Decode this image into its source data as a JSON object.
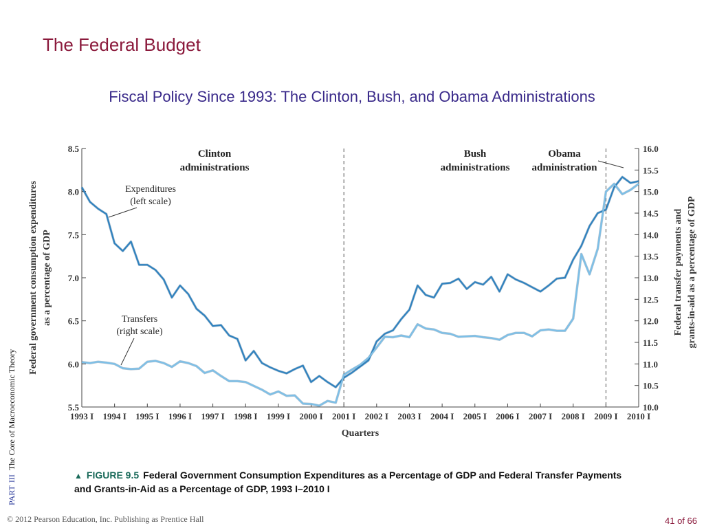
{
  "slide": {
    "title": "The Federal Budget",
    "subtitle": "Fiscal Policy Since 1993: The Clinton, Bush, and Obama Administrations",
    "side_part": "PART",
    "side_roman": "III",
    "side_text": "The Core of Macroeconomic Theory",
    "caption_figure": "FIGURE 9.5",
    "caption_text": "Federal Government Consumption Expenditures as a Percentage of GDP and Federal Transfer Payments and Grants-in-Aid as a Percentage of GDP, 1993 I–2010 I",
    "footer_left": "© 2012 Pearson Education, Inc. Publishing as Prentice Hall",
    "footer_right": "41 of 66"
  },
  "colors": {
    "title": "#8b1a3c",
    "subtitle": "#3a2a8a",
    "expenditures": "#2f82bf",
    "transfers": "#7cc0e8",
    "axis": "#444444"
  },
  "chart_data": {
    "type": "line",
    "xlabel": "Quarters",
    "ylabel_left": "Federal government consumption expenditures as a percentage of GDP",
    "ylabel_right": "Federal transfer payments and grants-in-aid as a percentage of GDP",
    "x_tick_labels": [
      "1993 I",
      "1994 I",
      "1995 I",
      "1996 I",
      "1997 I",
      "1998 I",
      "1999 I",
      "2000 I",
      "2001 I",
      "2002 I",
      "2003 I",
      "2004 I",
      "2005 I",
      "2006 I",
      "2007 I",
      "2008 I",
      "2009 I",
      "2010 I"
    ],
    "left_ylim": [
      5.5,
      8.5
    ],
    "left_ticks": [
      "5.5",
      "6.0",
      "6.5",
      "7.0",
      "7.5",
      "8.0",
      "8.5"
    ],
    "right_ylim": [
      10.0,
      16.0
    ],
    "right_ticks": [
      "10.0",
      "10.5",
      "11.0",
      "11.5",
      "12.0",
      "12.5",
      "13.0",
      "13.5",
      "14.0",
      "14.5",
      "15.0",
      "15.5",
      "16.0"
    ],
    "period_labels": [
      {
        "text": "Clinton\nadministrations",
        "quarter_index": 12.5
      },
      {
        "text": "Bush\nadministrations",
        "quarter_index": 52.5
      },
      {
        "text": "Obama\nadministration",
        "quarter_index": 63.5
      }
    ],
    "dividers_quarter_index": [
      32,
      64
    ],
    "annotations": [
      {
        "text": "Expenditures\n(left scale)",
        "series": "Expenditures"
      },
      {
        "text": "Transfers\n(right scale)",
        "series": "Transfers"
      }
    ],
    "series": [
      {
        "name": "Expenditures",
        "axis": "left",
        "values": [
          8.05,
          7.88,
          7.8,
          7.74,
          7.4,
          7.31,
          7.42,
          7.15,
          7.15,
          7.09,
          6.98,
          6.77,
          6.91,
          6.81,
          6.64,
          6.56,
          6.44,
          6.45,
          6.33,
          6.29,
          6.04,
          6.15,
          6.01,
          5.96,
          5.92,
          5.89,
          5.94,
          5.98,
          5.79,
          5.86,
          5.79,
          5.73,
          5.84,
          5.9,
          5.97,
          6.04,
          6.26,
          6.35,
          6.39,
          6.52,
          6.63,
          6.91,
          6.8,
          6.77,
          6.93,
          6.94,
          6.99,
          6.87,
          6.95,
          6.92,
          7.01,
          6.84,
          7.04,
          6.98,
          6.94,
          6.89,
          6.84,
          6.91,
          6.99,
          7.0,
          7.21,
          7.37,
          7.6,
          7.75,
          7.79,
          8.05,
          8.17,
          8.1,
          8.12
        ]
      },
      {
        "name": "Transfers",
        "axis": "right",
        "values": [
          11.04,
          11.02,
          11.05,
          11.03,
          11.0,
          10.9,
          10.88,
          10.89,
          11.05,
          11.07,
          11.02,
          10.93,
          11.06,
          11.02,
          10.95,
          10.79,
          10.85,
          10.72,
          10.6,
          10.6,
          10.58,
          10.49,
          10.4,
          10.29,
          10.36,
          10.26,
          10.27,
          10.08,
          10.07,
          10.03,
          10.14,
          10.1,
          10.75,
          10.87,
          10.98,
          11.14,
          11.38,
          11.63,
          11.62,
          11.66,
          11.62,
          11.92,
          11.82,
          11.8,
          11.72,
          11.7,
          11.63,
          11.64,
          11.65,
          11.62,
          11.6,
          11.56,
          11.67,
          11.72,
          11.72,
          11.64,
          11.78,
          11.8,
          11.77,
          11.77,
          12.05,
          13.55,
          13.08,
          13.67,
          15.0,
          15.18,
          14.94,
          15.04,
          15.18
        ]
      }
    ]
  }
}
